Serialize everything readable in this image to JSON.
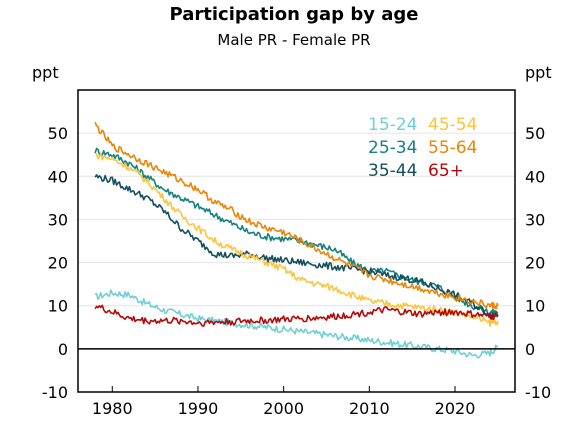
{
  "chart_data": {
    "type": "line",
    "title": "Participation gap by age",
    "subtitle": "Male PR - Female PR",
    "ylabel_left": "ppt",
    "ylabel_right": "ppt",
    "xlim": [
      1976,
      2027
    ],
    "ylim": [
      -10,
      60
    ],
    "x_ticks": [
      1980,
      1990,
      2000,
      2010,
      2020
    ],
    "y_ticks": [
      -10,
      0,
      10,
      20,
      30,
      40,
      50
    ],
    "grid": "horizontal",
    "zero_line": true,
    "legend_placement": "top-right",
    "series": [
      {
        "name": "15-24",
        "color": "#6FCFD6",
        "x": [
          1978,
          1980,
          1982,
          1984,
          1986,
          1988,
          1990,
          1992,
          1994,
          1996,
          1998,
          2000,
          2002,
          2004,
          2006,
          2008,
          2010,
          2012,
          2014,
          2016,
          2018,
          2020,
          2022,
          2024,
          2025
        ],
        "values": [
          12,
          13,
          12.5,
          10.5,
          9,
          8,
          7,
          6.5,
          6,
          5.5,
          5,
          4.5,
          4,
          3.5,
          3,
          2.5,
          2,
          1.5,
          1,
          0.5,
          0,
          -0.5,
          -1.5,
          -1,
          0.5
        ]
      },
      {
        "name": "25-34",
        "color": "#138380",
        "x": [
          1978,
          1980,
          1982,
          1984,
          1986,
          1988,
          1990,
          1992,
          1994,
          1996,
          1998,
          2000,
          2002,
          2004,
          2006,
          2008,
          2010,
          2012,
          2014,
          2016,
          2018,
          2020,
          2022,
          2024,
          2025
        ],
        "values": [
          46,
          45,
          43,
          40,
          37,
          35,
          33,
          31,
          29,
          27,
          26,
          25.5,
          25,
          24,
          23,
          20,
          18,
          18,
          16.5,
          15.5,
          14.5,
          12,
          10,
          8.5,
          8.5
        ]
      },
      {
        "name": "35-44",
        "color": "#134F5C",
        "x": [
          1978,
          1980,
          1982,
          1984,
          1986,
          1988,
          1990,
          1992,
          1994,
          1996,
          1998,
          2000,
          2002,
          2004,
          2006,
          2008,
          2010,
          2012,
          2014,
          2016,
          2018,
          2020,
          2022,
          2024,
          2025
        ],
        "values": [
          40,
          39,
          37,
          35,
          32,
          28,
          25,
          22,
          21.5,
          22,
          21,
          20.5,
          20,
          19.5,
          19,
          18.5,
          18,
          17,
          16.5,
          15.5,
          14,
          12.5,
          10.5,
          8,
          8
        ]
      },
      {
        "name": "45-54",
        "color": "#FFC43D",
        "x": [
          1978,
          1980,
          1982,
          1984,
          1986,
          1988,
          1990,
          1992,
          1994,
          1996,
          1998,
          2000,
          2002,
          2004,
          2006,
          2008,
          2010,
          2012,
          2014,
          2016,
          2018,
          2020,
          2022,
          2024,
          2025
        ],
        "values": [
          45,
          44,
          42,
          39,
          35,
          31,
          28,
          25,
          23,
          21.5,
          20,
          18.5,
          16,
          15,
          14,
          12.5,
          11,
          10.5,
          10,
          9.5,
          9,
          8.5,
          7.5,
          6,
          6.5
        ]
      },
      {
        "name": "55-64",
        "color": "#EB8505",
        "x": [
          1978,
          1980,
          1982,
          1984,
          1986,
          1988,
          1990,
          1992,
          1994,
          1996,
          1998,
          2000,
          2002,
          2004,
          2006,
          2008,
          2010,
          2012,
          2014,
          2016,
          2018,
          2020,
          2022,
          2024,
          2025
        ],
        "values": [
          52,
          47,
          45,
          43,
          41,
          39,
          37,
          34,
          32,
          29.5,
          28,
          27,
          25,
          23,
          21,
          19,
          17,
          16,
          15,
          14,
          13,
          12,
          11,
          10,
          10
        ]
      },
      {
        "name": "65+",
        "color": "#B40909",
        "x": [
          1978,
          1980,
          1982,
          1984,
          1986,
          1988,
          1990,
          1992,
          1994,
          1996,
          1998,
          2000,
          2002,
          2004,
          2006,
          2008,
          2010,
          2012,
          2014,
          2016,
          2018,
          2020,
          2022,
          2024,
          2025
        ],
        "values": [
          10,
          8.5,
          7,
          6.5,
          6.5,
          6.5,
          6,
          6.2,
          6.3,
          6.5,
          6.6,
          6.8,
          7,
          7.2,
          7.5,
          8,
          8.5,
          9,
          8.5,
          8,
          8.5,
          8.5,
          8,
          7.5,
          7.5
        ]
      }
    ]
  }
}
